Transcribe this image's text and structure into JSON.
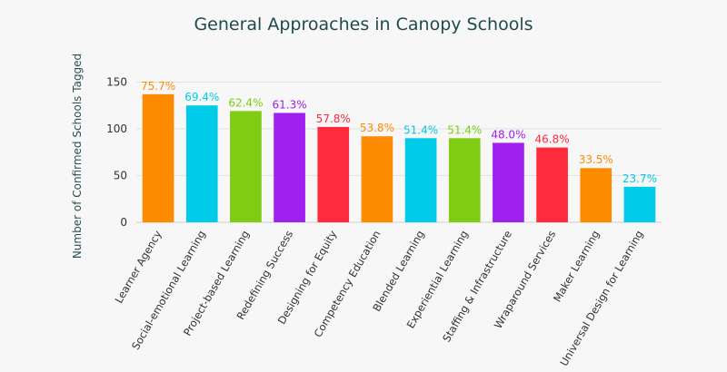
{
  "chart_data": {
    "type": "bar",
    "title": "General Approaches in Canopy Schools",
    "ylabel": "Number of Confirmed Schools Tagged",
    "xlabel": "",
    "ylim": [
      0,
      165
    ],
    "yticks": [
      0,
      50,
      100,
      150
    ],
    "grid": true,
    "categories": [
      "Learner Agency",
      "Social-emotional Learning",
      "Project-based Learning",
      "Redefining Success",
      "Designing for Equity",
      "Competency Education",
      "Blended Learning",
      "Experiential Learning",
      "Staffing & Infrastructure",
      "Wraparound Services",
      "Maker Learning",
      "Universal Design for Learning"
    ],
    "values": [
      137,
      125,
      119,
      117,
      102,
      92,
      90,
      90,
      85,
      80,
      58,
      38
    ],
    "data_labels": [
      "75.7%",
      "69.4%",
      "62.4%",
      "61.3%",
      "57.8%",
      "53.8%",
      "51.4%",
      "51.4%",
      "48.0%",
      "46.8%",
      "33.5%",
      "23.7%"
    ],
    "colors": [
      "#ff8c00",
      "#00cbe8",
      "#7fcc12",
      "#a020f0",
      "#ff2a3c",
      "#ff8c00",
      "#00cbe8",
      "#7fcc12",
      "#a020f0",
      "#ff2a3c",
      "#ff8c00",
      "#00cbe8"
    ]
  }
}
